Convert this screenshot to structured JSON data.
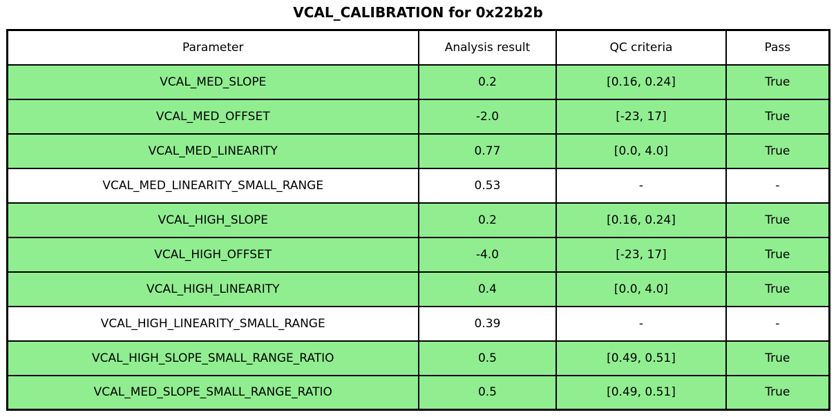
{
  "title": "VCAL_CALIBRATION for 0x22b2b",
  "table": {
    "columns": [
      "Parameter",
      "Analysis result",
      "QC criteria",
      "Pass"
    ],
    "rows": [
      {
        "parameter": "VCAL_MED_SLOPE",
        "result": "0.2",
        "qc": "[0.16, 0.24]",
        "pass": "True",
        "highlight": true
      },
      {
        "parameter": "VCAL_MED_OFFSET",
        "result": "-2.0",
        "qc": "[-23, 17]",
        "pass": "True",
        "highlight": true
      },
      {
        "parameter": "VCAL_MED_LINEARITY",
        "result": "0.77",
        "qc": "[0.0, 4.0]",
        "pass": "True",
        "highlight": true
      },
      {
        "parameter": "VCAL_MED_LINEARITY_SMALL_RANGE",
        "result": "0.53",
        "qc": "-",
        "pass": "-",
        "highlight": false
      },
      {
        "parameter": "VCAL_HIGH_SLOPE",
        "result": "0.2",
        "qc": "[0.16, 0.24]",
        "pass": "True",
        "highlight": true
      },
      {
        "parameter": "VCAL_HIGH_OFFSET",
        "result": "-4.0",
        "qc": "[-23, 17]",
        "pass": "True",
        "highlight": true
      },
      {
        "parameter": "VCAL_HIGH_LINEARITY",
        "result": "0.4",
        "qc": "[0.0, 4.0]",
        "pass": "True",
        "highlight": true
      },
      {
        "parameter": "VCAL_HIGH_LINEARITY_SMALL_RANGE",
        "result": "0.39",
        "qc": "-",
        "pass": "-",
        "highlight": false
      },
      {
        "parameter": "VCAL_HIGH_SLOPE_SMALL_RANGE_RATIO",
        "result": "0.5",
        "qc": "[0.49, 0.51]",
        "pass": "True",
        "highlight": true
      },
      {
        "parameter": "VCAL_MED_SLOPE_SMALL_RANGE_RATIO",
        "result": "0.5",
        "qc": "[0.49, 0.51]",
        "pass": "True",
        "highlight": true
      }
    ]
  },
  "colors": {
    "pass_row_background": "#90EE90",
    "neutral_row_background": "#FFFFFF",
    "border": "#000000",
    "text": "#000000"
  }
}
